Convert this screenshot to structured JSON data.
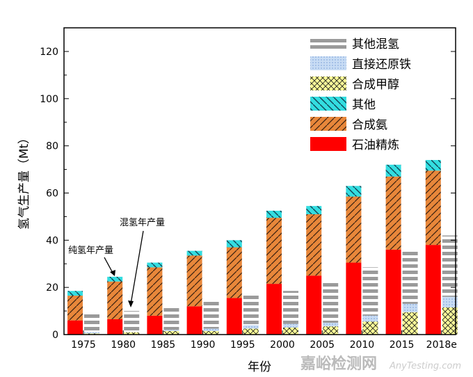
{
  "chart_data": {
    "type": "bar",
    "xlabel": "年份",
    "ylabel": "氢气生产量（Mt）",
    "ylim": [
      0,
      130
    ],
    "yticks": [
      0,
      20,
      40,
      60,
      80,
      100,
      120
    ],
    "categories": [
      "1975",
      "1980",
      "1985",
      "1990",
      "1995",
      "2000",
      "2005",
      "2010",
      "2015",
      "2018e"
    ],
    "stacks": [
      {
        "stack": "纯氢年产量",
        "series": [
          {
            "name": "石油精炼",
            "color": "#ff0000",
            "pattern": "solid",
            "values": [
              6,
              6.5,
              8,
              12,
              15.5,
              21.5,
              25,
              30.5,
              36,
              38
            ]
          },
          {
            "name": "合成氨",
            "color": "#e8873a",
            "pattern": "diagonal",
            "values": [
              10.5,
              16,
              20.5,
              21.5,
              21.5,
              28,
              26,
              28,
              31,
              31.5
            ]
          },
          {
            "name": "其他",
            "color": "#33dde0",
            "pattern": "backdiagonal",
            "values": [
              2,
              2,
              2,
              2,
              3,
              3,
              3.5,
              4.5,
              5,
              4.5
            ]
          }
        ]
      },
      {
        "stack": "混氢年产量",
        "series": [
          {
            "name": "合成甲醇",
            "color": "#ffff99",
            "pattern": "crosshatch",
            "values": [
              0.5,
              1,
              1.5,
              1.5,
              2.5,
              3,
              3.5,
              5.5,
              9.5,
              11.5
            ]
          },
          {
            "name": "直接还原铁",
            "color": "#aaccee",
            "pattern": "dots",
            "values": [
              0.5,
              0,
              0.5,
              1,
              1.5,
              1.5,
              1.5,
              2.5,
              3.5,
              4.5
            ]
          },
          {
            "name": "其他混氢",
            "color": "#999999",
            "pattern": "stripes",
            "values": [
              8.5,
              9,
              10,
              12,
              12.5,
              14,
              17.5,
              20.5,
              22.5,
              26
            ]
          }
        ]
      }
    ],
    "legend": [
      "其他混氢",
      "直接还原铁",
      "合成甲醇",
      "其他",
      "合成氨",
      "石油精炼"
    ],
    "legend_position": "top-right",
    "annotations": [
      "纯氢年产量",
      "混氢年产量"
    ]
  },
  "watermark": {
    "main": "嘉峪检测网",
    "sub": "AnyTesting.com"
  }
}
